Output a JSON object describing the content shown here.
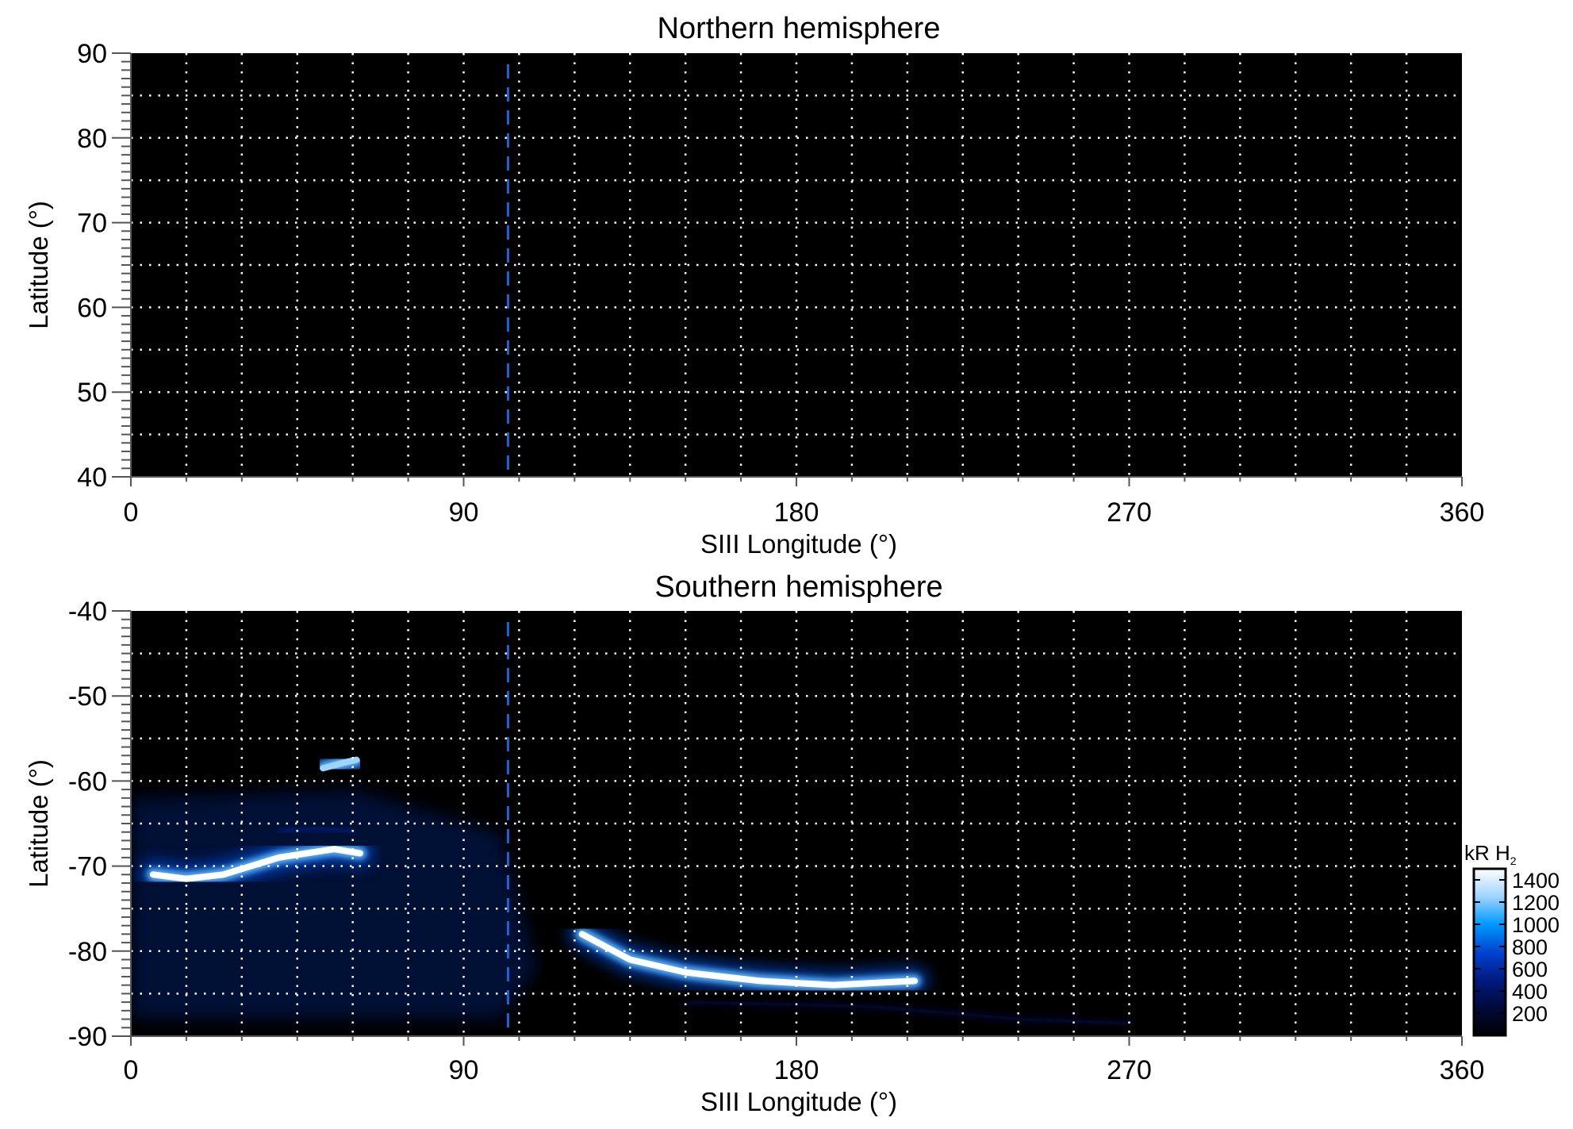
{
  "chart_data": [
    {
      "type": "heatmap",
      "title": "Northern hemisphere",
      "xlabel": "SIII Longitude (°)",
      "ylabel": "Latitude (°)",
      "xlim": [
        0,
        360
      ],
      "ylim": [
        40,
        90
      ],
      "xticks": [
        0,
        90,
        180,
        270,
        360
      ],
      "yticks": [
        40,
        50,
        60,
        70,
        80,
        90
      ],
      "xtick_labels": [
        "0",
        "90",
        "180",
        "270",
        "360"
      ],
      "ytick_labels": [
        "40",
        "50",
        "60",
        "70",
        "80",
        "90"
      ],
      "grid": {
        "lon_step": 15,
        "lat_step": 5,
        "style": "dotted"
      },
      "reference_longitude": 102,
      "features": []
    },
    {
      "type": "heatmap",
      "title": "Southern hemisphere",
      "xlabel": "SIII Longitude (°)",
      "ylabel": "Latitude (°)",
      "xlim": [
        0,
        360
      ],
      "ylim": [
        -90,
        -40
      ],
      "xticks": [
        0,
        90,
        180,
        270,
        360
      ],
      "yticks": [
        -90,
        -80,
        -70,
        -60,
        -50,
        -40
      ],
      "xtick_labels": [
        "0",
        "90",
        "180",
        "270",
        "360"
      ],
      "ytick_labels": [
        "-90",
        "-80",
        "-70",
        "-60",
        "-50",
        "-40"
      ],
      "grid": {
        "lon_step": 15,
        "lat_step": 5,
        "style": "dotted"
      },
      "reference_longitude": 102,
      "features": [
        {
          "name": "diffuse-emission-west",
          "intensity": 250,
          "points": [
            [
              0,
              -62
            ],
            [
              60,
              -61
            ],
            [
              100,
              -66
            ],
            [
              110,
              -82
            ],
            [
              100,
              -88
            ],
            [
              0,
              -88
            ]
          ]
        },
        {
          "name": "main-arc-west",
          "intensity": 1400,
          "points": [
            [
              6,
              -71
            ],
            [
              15,
              -71.5
            ],
            [
              25,
              -71
            ],
            [
              40,
              -69
            ],
            [
              55,
              -68
            ],
            [
              62,
              -68.5
            ]
          ]
        },
        {
          "name": "spot",
          "intensity": 1200,
          "points": [
            [
              52,
              -58.5
            ],
            [
              58,
              -57.8
            ],
            [
              61,
              -57.5
            ]
          ]
        },
        {
          "name": "faint-arc",
          "intensity": 500,
          "points": [
            [
              40,
              -66
            ],
            [
              50,
              -65.5
            ],
            [
              60,
              -66
            ]
          ]
        },
        {
          "name": "main-arc-east",
          "intensity": 1400,
          "points": [
            [
              122,
              -78
            ],
            [
              135,
              -81
            ],
            [
              150,
              -82.5
            ],
            [
              170,
              -83.5
            ],
            [
              190,
              -84
            ],
            [
              212,
              -83.5
            ]
          ]
        },
        {
          "name": "faint-band-south",
          "intensity": 300,
          "points": [
            [
              150,
              -86
            ],
            [
              200,
              -86.5
            ],
            [
              240,
              -88
            ],
            [
              270,
              -88.5
            ]
          ]
        }
      ]
    }
  ],
  "colorbar": {
    "label": "kR H",
    "label_sub": "2",
    "range": [
      0,
      1500
    ],
    "tick_labels": [
      "1400",
      "1200",
      "1000",
      "800",
      "600",
      "400",
      "200"
    ],
    "ticks": [
      1400,
      1200,
      1000,
      800,
      600,
      400,
      200
    ],
    "colors": [
      "#000000",
      "#000a3a",
      "#001a80",
      "#0044d0",
      "#0099ff",
      "#9fd4ff",
      "#ffffff"
    ]
  },
  "colors": {
    "reference_line": "#1e64d2",
    "grid": "#ffffff",
    "background": "#000000"
  }
}
